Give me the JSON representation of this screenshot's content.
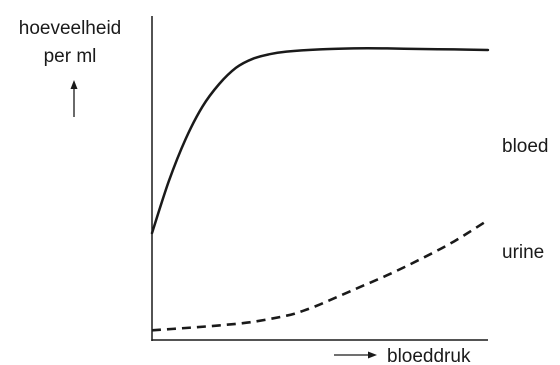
{
  "chart_data": {
    "type": "line",
    "ylabel": [
      "hoeveelheid",
      "per ml"
    ],
    "xlabel": "bloeddruk",
    "grid": false,
    "series": [
      {
        "name": "bloed",
        "style": "solid",
        "color": "#1a1a1a",
        "x": [
          0,
          0.05,
          0.1,
          0.15,
          0.2,
          0.25,
          0.3,
          0.35,
          0.4,
          0.5,
          0.6,
          0.7,
          0.8,
          0.9,
          1.0
        ],
        "y": [
          0.33,
          0.49,
          0.62,
          0.72,
          0.79,
          0.84,
          0.868,
          0.882,
          0.89,
          0.897,
          0.9,
          0.9,
          0.898,
          0.897,
          0.895
        ]
      },
      {
        "name": "urine",
        "style": "dashed",
        "color": "#1a1a1a",
        "x": [
          0,
          0.1,
          0.2,
          0.3,
          0.4,
          0.45,
          0.5,
          0.6,
          0.7,
          0.8,
          0.9,
          1.0
        ],
        "y": [
          0.03,
          0.037,
          0.045,
          0.056,
          0.075,
          0.09,
          0.11,
          0.155,
          0.2,
          0.25,
          0.305,
          0.37
        ]
      }
    ]
  }
}
